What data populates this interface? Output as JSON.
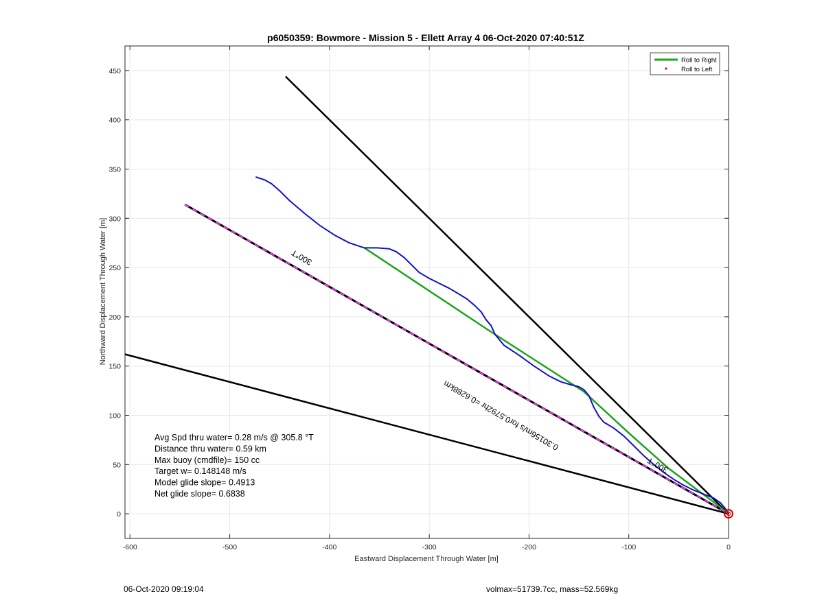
{
  "chart_data": {
    "type": "line",
    "title": "p6050359: Bowmore - Mission 5 - Ellett Array 4 06-Oct-2020 07:40:51Z",
    "xlabel": "Eastward Displacement Through Water [m]",
    "ylabel": "Northward Displacement Through Water [m]",
    "xlim": [
      -605,
      0
    ],
    "ylim": [
      -25,
      475
    ],
    "xticks": [
      -600,
      -500,
      -400,
      -300,
      -200,
      -100,
      0
    ],
    "yticks": [
      0,
      50,
      100,
      150,
      200,
      250,
      300,
      350,
      400,
      450
    ],
    "grid": true,
    "legend": {
      "placement": "top-right",
      "entries": [
        "Roll to Right",
        "Roll to Left"
      ]
    },
    "series": [
      {
        "name": "Roll to Right",
        "color": "#1aa51a",
        "x": [
          -365,
          -240,
          -145,
          -100,
          -60,
          -35,
          -15,
          0
        ],
        "y": [
          270,
          186,
          124,
          82,
          46,
          27,
          12,
          0
        ]
      },
      {
        "name": "Roll to Left",
        "color": "#ff0000",
        "x": [],
        "y": []
      }
    ],
    "lines": [
      {
        "kind": "track",
        "color": "#1010c8",
        "x": [
          -474,
          -465,
          -458,
          -450,
          -440,
          -425,
          -410,
          -395,
          -380,
          -365,
          -352,
          -340,
          -333,
          -325,
          -318,
          -310,
          -300,
          -290,
          -280,
          -270,
          -262,
          -255,
          -248,
          -243,
          -238,
          -234,
          -225,
          -210,
          -195,
          -180,
          -168,
          -158,
          -150,
          -145,
          -140,
          -135,
          -130,
          -125,
          -120,
          -115,
          -105,
          -95,
          -85,
          -75,
          -65,
          -55,
          -45,
          -35,
          -25,
          -15,
          -8,
          -3,
          0
        ],
        "y": [
          342,
          339,
          335,
          328,
          318,
          305,
          293,
          283,
          275,
          270,
          270,
          269,
          266,
          260,
          253,
          245,
          239,
          234,
          229,
          223,
          218,
          212,
          205,
          197,
          191,
          182,
          171,
          161,
          150,
          140,
          134,
          131,
          129,
          126,
          120,
          108,
          99,
          93,
          90,
          87,
          79,
          69,
          59,
          50,
          42,
          35,
          29,
          24,
          20,
          16,
          11,
          5,
          0
        ]
      },
      {
        "kind": "glide-bound",
        "color": "#000000",
        "x": [
          -444,
          0
        ],
        "y": [
          444,
          0
        ]
      },
      {
        "kind": "glide-bound",
        "color": "#000000",
        "x": [
          -605,
          0
        ],
        "y": [
          162,
          0
        ]
      },
      {
        "kind": "target-course",
        "color": "#000000",
        "dash_color": "#ff33ff",
        "x": [
          -545,
          0
        ],
        "y": [
          314,
          0
        ]
      }
    ],
    "markers": [
      {
        "kind": "origin-circle",
        "color": "#e00000",
        "x": 0,
        "y": 0
      }
    ],
    "annotations": [
      {
        "text": "300°T",
        "x": -417,
        "y": 257,
        "angle_deg": 210
      },
      {
        "text": "300°T",
        "x": -60,
        "y": 46,
        "angle_deg": 210
      },
      {
        "text": "0.30156m/s for0.5792hr =0.6288km",
        "x": -170,
        "y": 69,
        "angle_deg": 210
      }
    ],
    "info_lines": [
      "Avg Spd thru water=  0.28 m/s @ 305.8 °T",
      "Distance thru water=  0.59 km",
      "Max buoy (cmdfile)= 150 cc",
      "Target w= 0.148148 m/s",
      "Model glide slope= 0.4913",
      "Net glide slope= 0.6838"
    ]
  },
  "footer": {
    "timestamp": "06-Oct-2020 09:19:04",
    "vol_mass": "volmax=51739.7cc, mass=52.569kg"
  }
}
